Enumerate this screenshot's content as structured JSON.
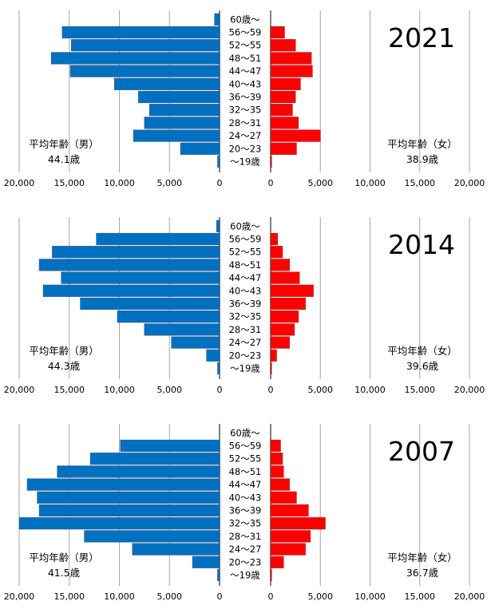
{
  "chart_data": [
    {
      "type": "bar",
      "title": "2021",
      "categories": [
        "60歳～",
        "56～59",
        "52～55",
        "48～51",
        "44～47",
        "40～43",
        "36～39",
        "32～35",
        "28～31",
        "24～27",
        "20～23",
        "～19歳"
      ],
      "series": [
        {
          "name": "男",
          "color": "#0070c0",
          "values": [
            500,
            15700,
            14800,
            16800,
            14900,
            10500,
            8100,
            7000,
            7500,
            8600,
            3900,
            200
          ]
        },
        {
          "name": "女",
          "color": "#ff0000",
          "values": [
            0,
            1400,
            2500,
            4100,
            4200,
            3000,
            2500,
            2200,
            2800,
            5000,
            2600,
            100
          ]
        }
      ],
      "x_ticks": [
        "20,000",
        "15,000",
        "10,000",
        "5,000",
        "0",
        "0",
        "5,000",
        "10,000",
        "15,000",
        "20,000"
      ],
      "xlim": [
        0,
        20000
      ],
      "avg_male_label": "平均年齢（男）",
      "avg_male_value": "44.1歳",
      "avg_female_label": "平均年齢（女）",
      "avg_female_value": "38.9歳"
    },
    {
      "type": "bar",
      "title": "2014",
      "categories": [
        "60歳～",
        "56～59",
        "52～55",
        "48～51",
        "44～47",
        "40～43",
        "36～39",
        "32～35",
        "28～31",
        "24～27",
        "20～23",
        "～19歳"
      ],
      "series": [
        {
          "name": "男",
          "color": "#0070c0",
          "values": [
            300,
            12300,
            16700,
            18000,
            15800,
            17600,
            13900,
            10200,
            7500,
            4800,
            1300,
            200
          ]
        },
        {
          "name": "女",
          "color": "#ff0000",
          "values": [
            0,
            700,
            1200,
            1900,
            2900,
            4300,
            3500,
            2800,
            2400,
            1900,
            600,
            100
          ]
        }
      ],
      "x_ticks": [
        "20,000",
        "15,000",
        "10,000",
        "5,000",
        "0",
        "0",
        "5,000",
        "10,000",
        "15,000",
        "20,000"
      ],
      "xlim": [
        0,
        20000
      ],
      "avg_male_label": "平均年齢（男）",
      "avg_male_value": "44.3歳",
      "avg_female_label": "平均年齢（女）",
      "avg_female_value": "39.6歳"
    },
    {
      "type": "bar",
      "title": "2007",
      "categories": [
        "60歳～",
        "56～59",
        "52～55",
        "48～51",
        "44～47",
        "40～43",
        "36～39",
        "32～35",
        "28～31",
        "24～27",
        "20～23",
        "～19歳"
      ],
      "series": [
        {
          "name": "男",
          "color": "#0070c0",
          "values": [
            0,
            9900,
            12900,
            16200,
            19200,
            18200,
            18000,
            20000,
            13500,
            8700,
            2700,
            200
          ]
        },
        {
          "name": "女",
          "color": "#ff0000",
          "values": [
            0,
            1000,
            1200,
            1300,
            1900,
            2600,
            3800,
            5500,
            4000,
            3500,
            1300,
            100
          ]
        }
      ],
      "x_ticks": [
        "20,000",
        "15,000",
        "10,000",
        "5,000",
        "0",
        "0",
        "5,000",
        "10,000",
        "15,000",
        "20,000"
      ],
      "xlim": [
        0,
        20000
      ],
      "avg_male_label": "平均年齢（男）",
      "avg_male_value": "41.5歳",
      "avg_female_label": "平均年齢（女）",
      "avg_female_value": "36.7歳"
    }
  ]
}
